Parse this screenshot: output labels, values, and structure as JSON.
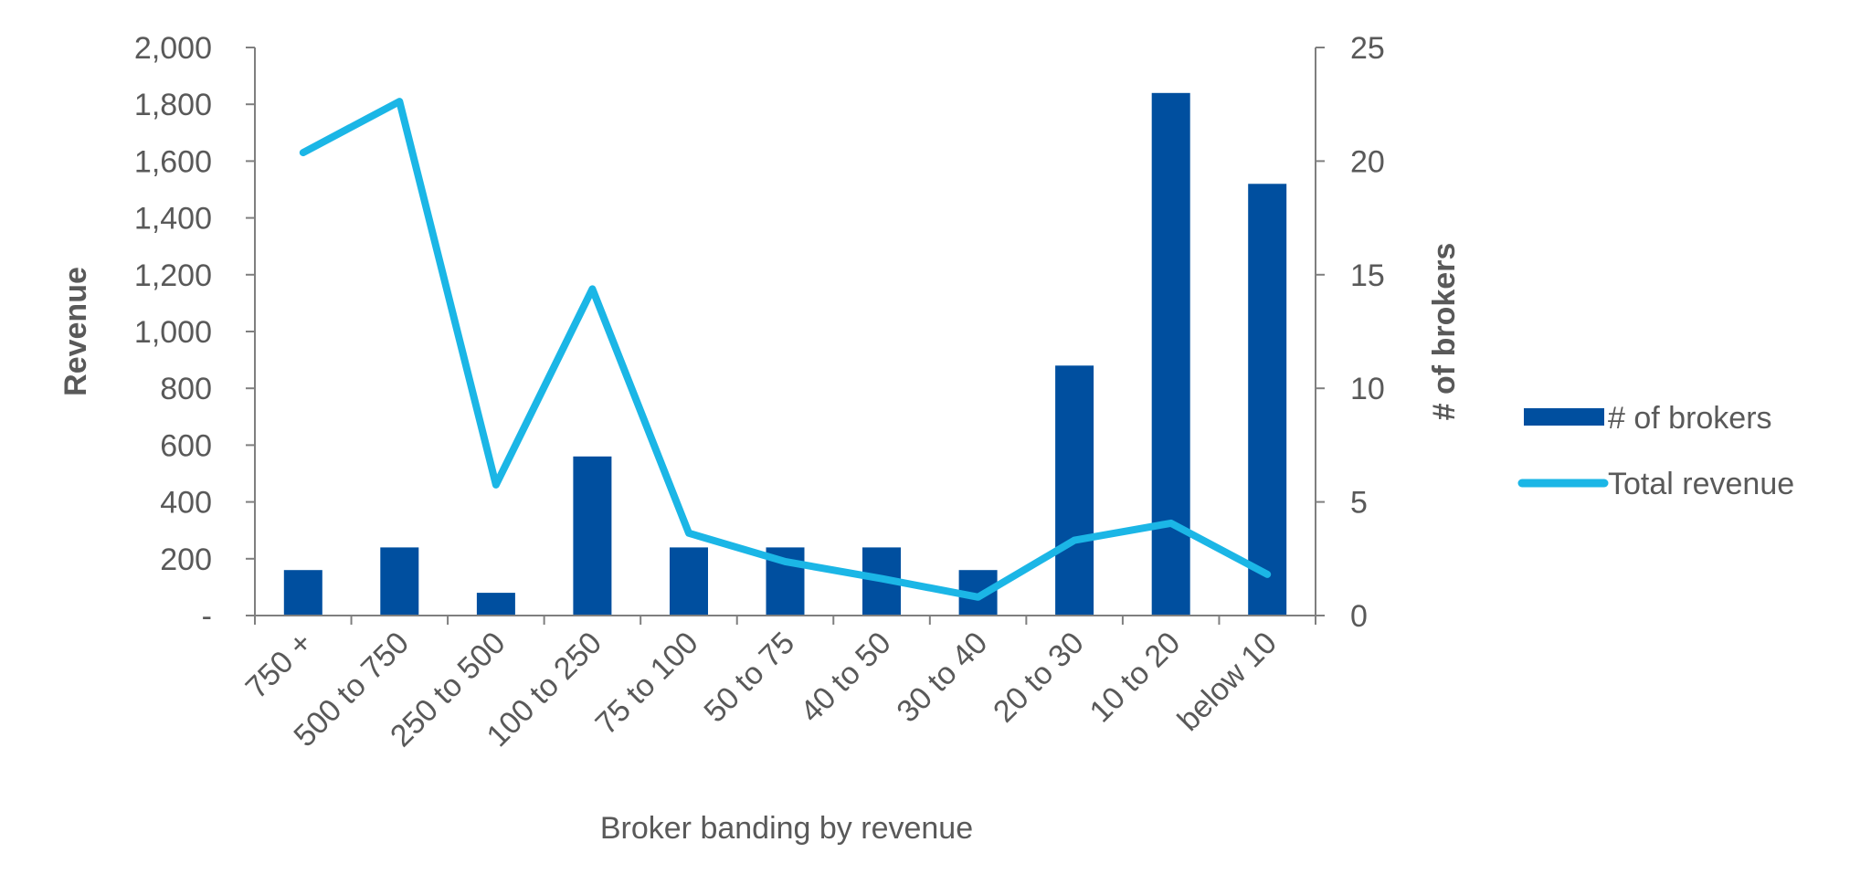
{
  "chart_data": {
    "type": "bar",
    "categories": [
      "750 +",
      "500 to 750",
      "250 to 500",
      "100 to 250",
      "75 to 100",
      "50 to 75",
      "40 to 50",
      "30 to 40",
      "20 to 30",
      "10 to 20",
      "below 10"
    ],
    "series": [
      {
        "name": "# of brokers",
        "type": "bar",
        "axis": "right",
        "color": "#004F9F",
        "values": [
          2,
          3,
          1,
          7,
          3,
          3,
          3,
          2,
          11,
          23,
          19
        ]
      },
      {
        "name": "Total revenue",
        "type": "line",
        "axis": "left",
        "color": "#1BB6E6",
        "values": [
          1630,
          1810,
          460,
          1150,
          290,
          190,
          130,
          65,
          265,
          325,
          145
        ]
      }
    ],
    "xlabel": "Broker banding by revenue",
    "ylabel_left": "Revenue",
    "ylabel_right": "# of brokers",
    "y_left": {
      "range": [
        0,
        2000
      ],
      "ticks": [
        0,
        200,
        400,
        600,
        800,
        1000,
        1200,
        1400,
        1600,
        1800,
        2000
      ],
      "tick_labels": [
        "-",
        "200",
        "400",
        "600",
        "800",
        "1,000",
        "1,200",
        "1,400",
        "1,600",
        "1,800",
        "2,000"
      ]
    },
    "y_right": {
      "range": [
        0,
        25
      ],
      "ticks": [
        0,
        5,
        10,
        15,
        20,
        25
      ],
      "tick_labels": [
        "0",
        "5",
        "10",
        "15",
        "20",
        "25"
      ]
    },
    "legend_position": "right",
    "grid": false
  }
}
